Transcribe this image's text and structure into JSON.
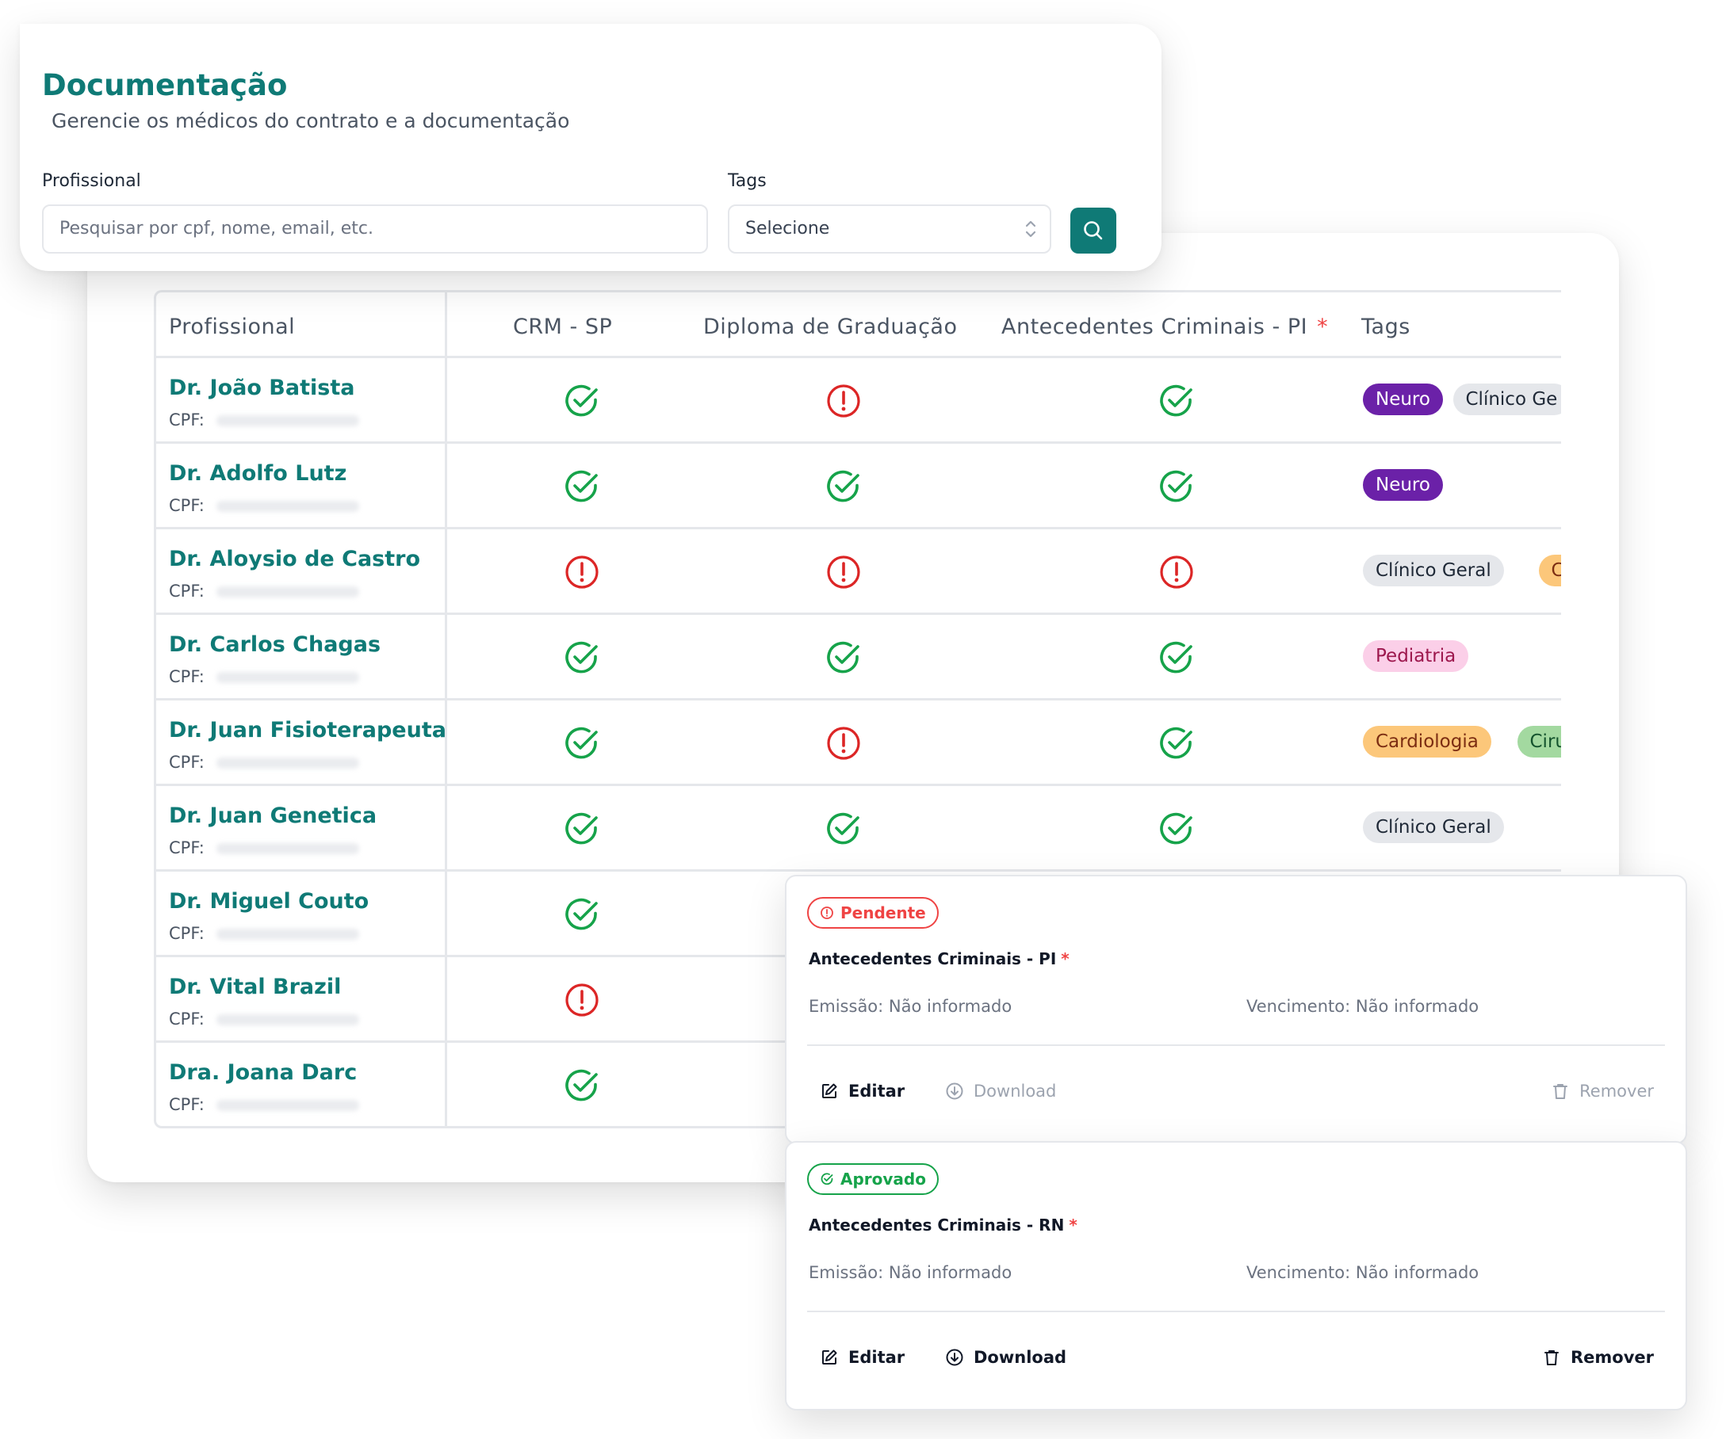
{
  "header": {
    "title": "Documentação",
    "subtitle": "Gerencie os médicos do contrato e a documentação",
    "profissional_label": "Profissional",
    "search_placeholder": "Pesquisar por cpf, nome, email, etc.",
    "tags_label": "Tags",
    "tags_select_value": "Selecione",
    "search_button_icon": "search-icon",
    "colors": {
      "primary": "#0f7a76"
    }
  },
  "table": {
    "columns": {
      "profissional": "Profissional",
      "crm": "CRM - SP",
      "diploma": "Diploma de Graduação",
      "antecedentes": "Antecedentes Criminais - PI",
      "antecedentes_required": "*",
      "tags": "Tags"
    },
    "cpf_label": "CPF:",
    "rows": [
      {
        "name": "Dr. João Batista",
        "crm": "ok",
        "diploma": "pending",
        "antecedentes": "ok",
        "tags": [
          {
            "label": "Neuro",
            "color": "purple"
          },
          {
            "label": "Clínico Ge",
            "color": "gray"
          }
        ]
      },
      {
        "name": "Dr. Adolfo Lutz",
        "crm": "ok",
        "diploma": "ok",
        "antecedentes": "ok",
        "tags": [
          {
            "label": "Neuro",
            "color": "purple"
          }
        ]
      },
      {
        "name": "Dr. Aloysio de Castro",
        "crm": "pending",
        "diploma": "pending",
        "antecedentes": "pending",
        "tags": [
          {
            "label": "Clínico Geral",
            "color": "gray"
          },
          {
            "label": "Ca",
            "color": "orange"
          }
        ]
      },
      {
        "name": "Dr. Carlos Chagas",
        "crm": "ok",
        "diploma": "ok",
        "antecedentes": "ok",
        "tags": [
          {
            "label": "Pediatria",
            "color": "pink"
          }
        ]
      },
      {
        "name": "Dr. Juan Fisioterapeuta",
        "crm": "ok",
        "diploma": "pending",
        "antecedentes": "ok",
        "tags": [
          {
            "label": "Cardiologia",
            "color": "orange"
          },
          {
            "label": "Ciru",
            "color": "green"
          }
        ]
      },
      {
        "name": "Dr. Juan Genetica",
        "crm": "ok",
        "diploma": "ok",
        "antecedentes": "ok",
        "tags": [
          {
            "label": "Clínico Geral",
            "color": "gray"
          }
        ]
      },
      {
        "name": "Dr. Miguel Couto",
        "crm": "ok",
        "tags": []
      },
      {
        "name": "Dr. Vital Brazil",
        "crm": "pending",
        "tags": []
      },
      {
        "name": "Dra. Joana Darc",
        "crm": "ok",
        "tags": []
      }
    ],
    "status_colors": {
      "ok": "#16a34a",
      "pending": "#dc2626"
    },
    "tag_colors": {
      "purple": {
        "bg": "#6b21a8",
        "fg": "#ffffff"
      },
      "gray": {
        "bg": "#e5e7eb",
        "fg": "#1f2937"
      },
      "orange": {
        "bg": "#fcc77a",
        "fg": "#7c2d12"
      },
      "pink": {
        "bg": "#fbcfe8",
        "fg": "#9d174d"
      },
      "green": {
        "bg": "#a3d9a0",
        "fg": "#14532d"
      }
    }
  },
  "documents": [
    {
      "status": "Pendente",
      "status_color": "#ef4444",
      "status_icon": "alert-circle-icon",
      "title": "Antecedentes Criminais - PI",
      "required": "*",
      "emissao": "Emissão: Não informado",
      "vencimento": "Vencimento: Não informado",
      "actions": {
        "edit": "Editar",
        "download": "Download",
        "remove": "Remover"
      },
      "actions_enabled": false
    },
    {
      "status": "Aprovado",
      "status_color": "#16a34a",
      "status_icon": "check-circle-icon",
      "title": "Antecedentes Criminais - RN",
      "required": "*",
      "emissao": "Emissão: Não informado",
      "vencimento": "Vencimento: Não informado",
      "actions": {
        "edit": "Editar",
        "download": "Download",
        "remove": "Remover"
      },
      "actions_enabled": true
    }
  ]
}
